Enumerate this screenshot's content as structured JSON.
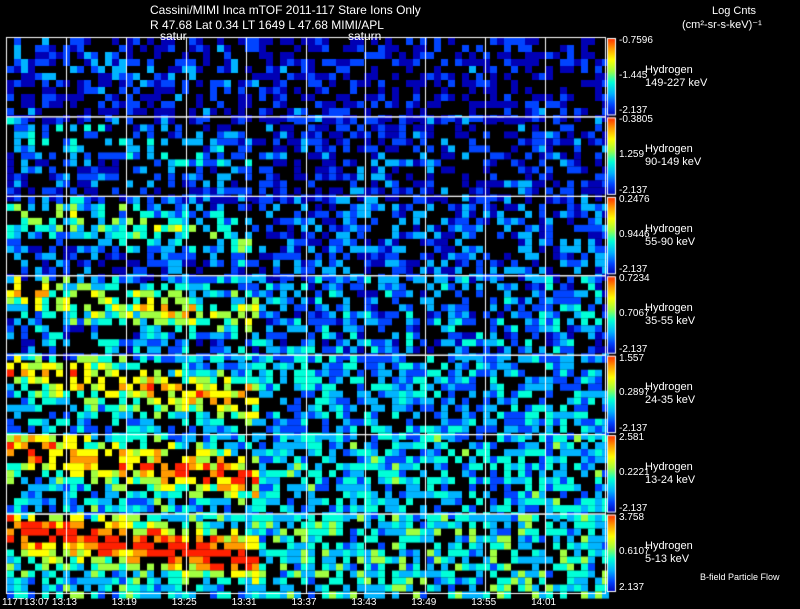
{
  "header": {
    "line1": "Cassini/MIMI Inca mTOF  2011-117   Stare   Ions Only",
    "line2": "R        47.68 Lat 0.34 LT 1649 L          47.68  MIMI/APL",
    "saturn_left": "satur",
    "saturn_right": "saturn",
    "units_line1": "Log Cnts",
    "units_line2": "(cm²-sr-s-keV)⁻¹",
    "footer_note": "B-field Particle Flow"
  },
  "colors": {
    "background": "#000000",
    "grid": "#ffffff",
    "colormap": [
      "#0000b4",
      "#0044ff",
      "#00b4ff",
      "#00ffd8",
      "#a0ff40",
      "#ffff00",
      "#ff9a00",
      "#ff2000"
    ]
  },
  "chart_data": {
    "type": "heatmap",
    "x_tick_labels": [
      "117T13:07",
      "13:13",
      "13:19",
      "13:25",
      "13:31",
      "13:37",
      "13:43",
      "13:49",
      "13:55",
      "14:01"
    ],
    "panels": [
      {
        "species": "Hydrogen",
        "energy": "149-227 keV",
        "cb_max": "-0.7596",
        "cb_mid": "-1.445",
        "cb_min": "-2.137",
        "intensity": 0.15
      },
      {
        "species": "Hydrogen",
        "energy": "90-149 keV",
        "cb_max": "-0.3805",
        "cb_mid": "1.259",
        "cb_min": "-2.137",
        "intensity": 0.22
      },
      {
        "species": "Hydrogen",
        "energy": "55-90 keV",
        "cb_max": "0.2476",
        "cb_mid": "0.9446",
        "cb_min": "-2.137",
        "intensity": 0.35
      },
      {
        "species": "Hydrogen",
        "energy": "35-55 keV",
        "cb_max": "0.7234",
        "cb_mid": "0.7067",
        "cb_min": "-2.137",
        "intensity": 0.45
      },
      {
        "species": "Hydrogen",
        "energy": "24-35 keV",
        "cb_max": "1.557",
        "cb_mid": "0.2897",
        "cb_min": "-2.137",
        "intensity": 0.55
      },
      {
        "species": "Hydrogen",
        "energy": "13-24 keV",
        "cb_max": "2.581",
        "cb_mid": "0.2221",
        "cb_min": "-2.137",
        "intensity": 0.62
      },
      {
        "species": "Hydrogen",
        "energy": "5-13 keV",
        "cb_max": "3.758",
        "cb_mid": "0.6107",
        "cb_min": "2.137",
        "intensity": 0.72
      }
    ]
  }
}
